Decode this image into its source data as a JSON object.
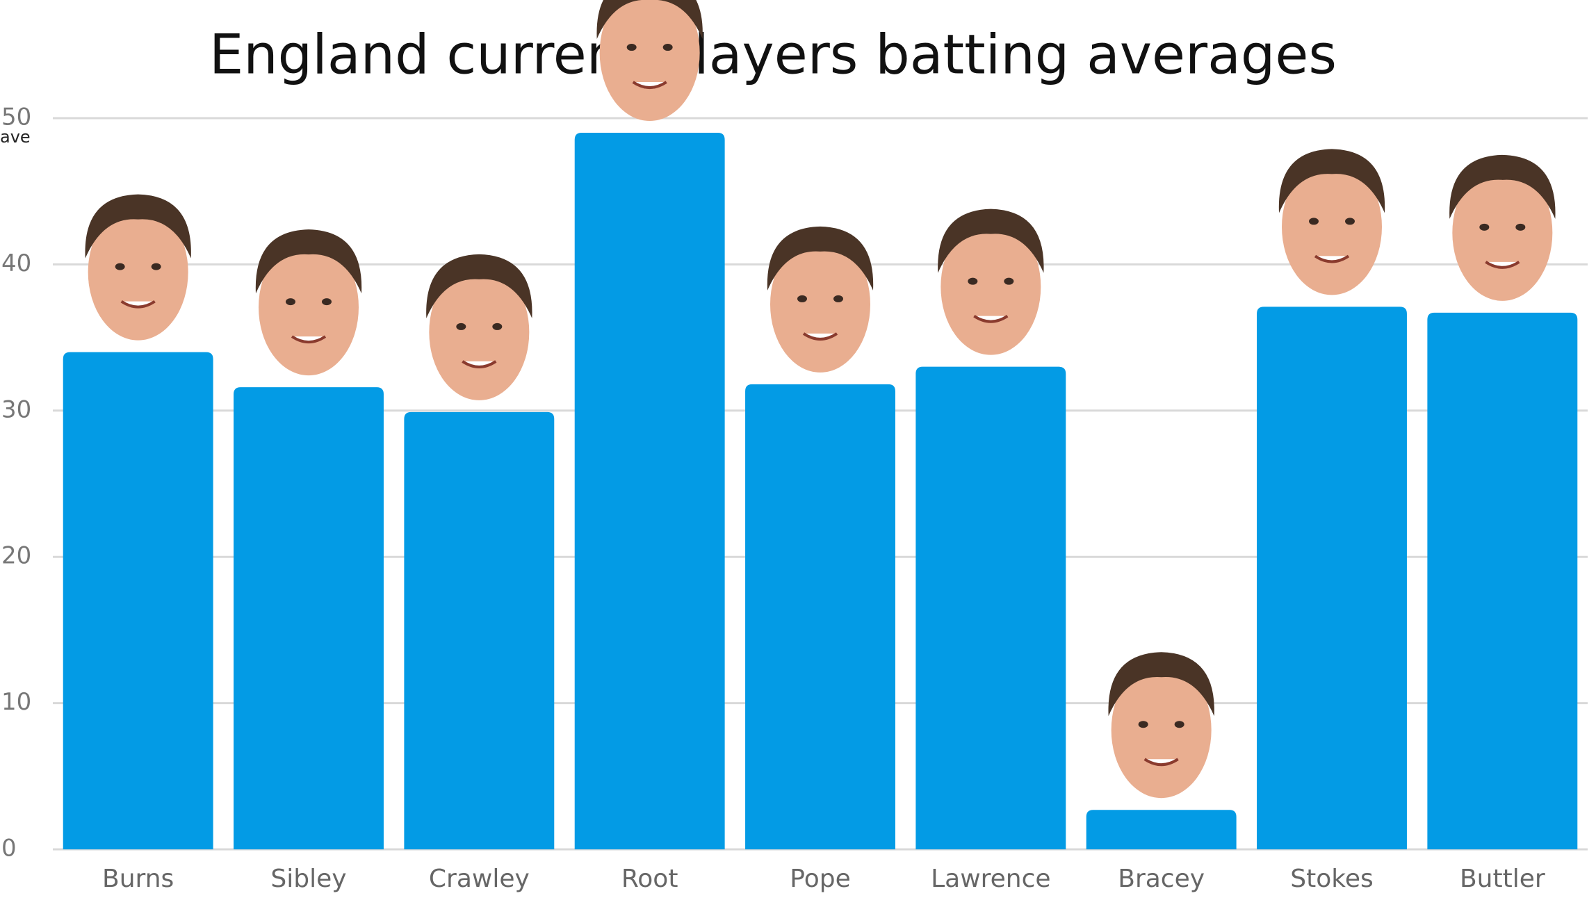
{
  "chart_data": {
    "type": "bar",
    "title": "England current players batting averages",
    "y_label": "ave",
    "categories": [
      "Burns",
      "Sibley",
      "Crawley",
      "Root",
      "Pope",
      "Lawrence",
      "Bracey",
      "Stokes",
      "Buttler"
    ],
    "values": [
      34.0,
      31.6,
      29.9,
      49.0,
      31.8,
      33.0,
      2.7,
      37.1,
      36.7
    ],
    "color": "#039be5",
    "ylim": [
      0,
      50
    ],
    "yticks": [
      0,
      10,
      20,
      30,
      40,
      50
    ],
    "grid": true
  }
}
